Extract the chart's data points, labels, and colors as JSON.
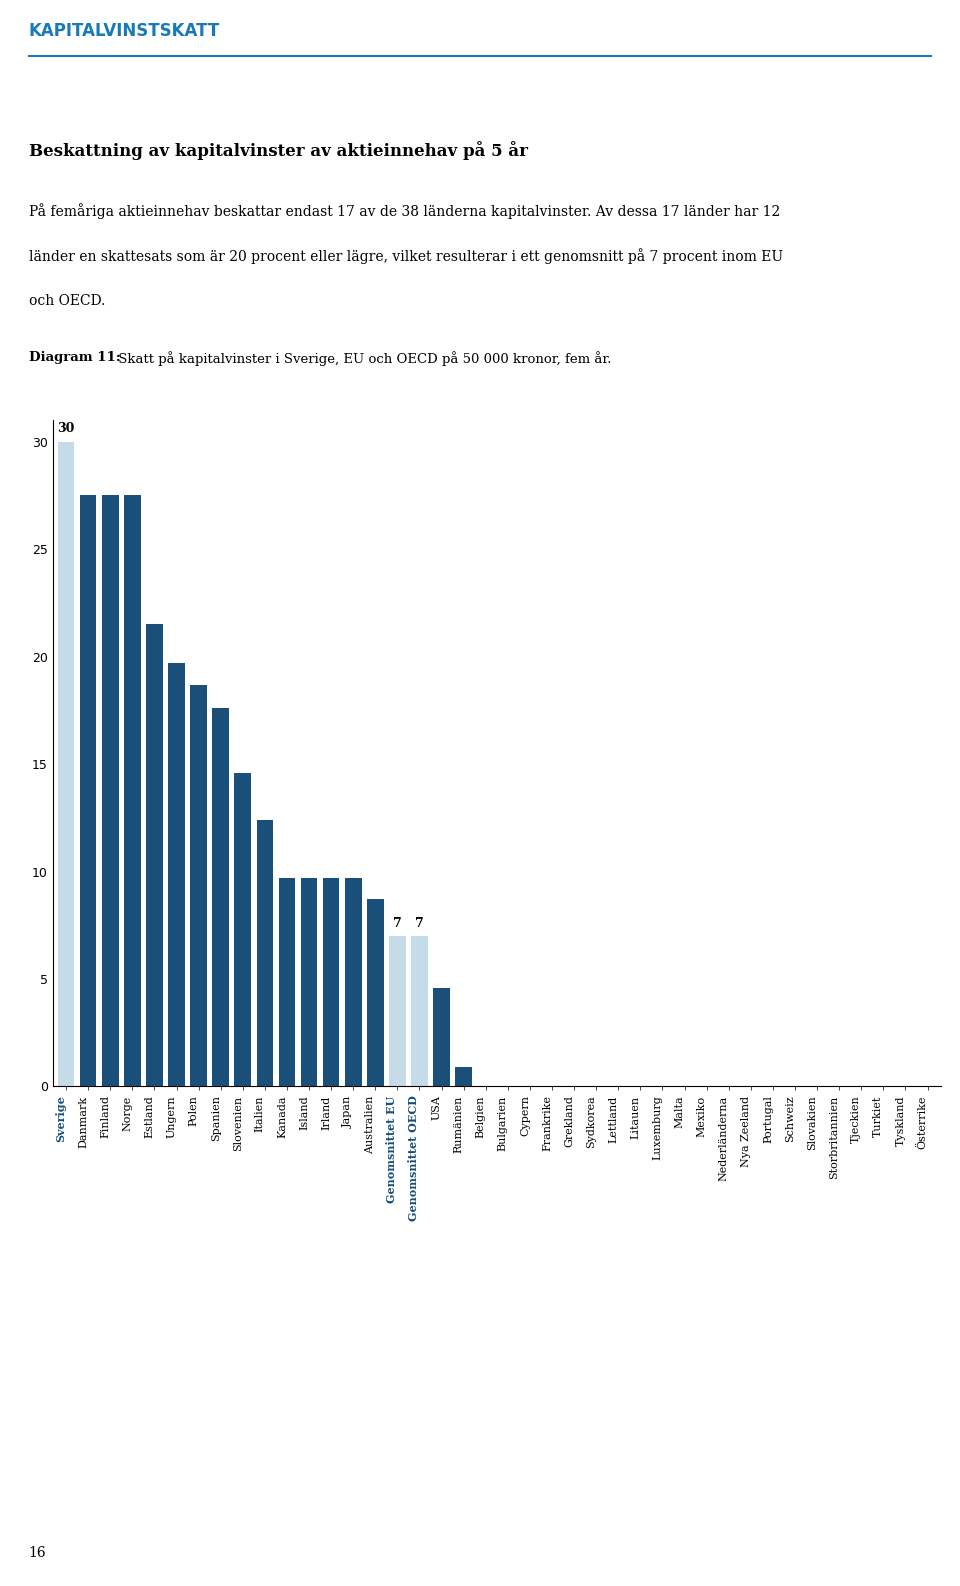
{
  "categories": [
    "Sverige",
    "Danmark",
    "Finland",
    "Norge",
    "Estland",
    "Ungern",
    "Polen",
    "Spanien",
    "Slovenien",
    "Italien",
    "Kanada",
    "Island",
    "Irland",
    "Japan",
    "Australien",
    "Genomsnittet EU",
    "Genomsnittet OECD",
    "USA",
    "Rumänien",
    "Belgien",
    "Bulgarien",
    "Cypern",
    "Frankrike",
    "Grekland",
    "Sydkorea",
    "Lettland",
    "Litauen",
    "Luxemburg",
    "Malta",
    "Mexiko",
    "Nederländerna",
    "Nya Zeeland",
    "Portugal",
    "Schweiz",
    "Slovakien",
    "Storbritannien",
    "Tjeckien",
    "Turkiet",
    "Tyskland",
    "Österrike"
  ],
  "values": [
    30,
    27.5,
    27.5,
    27.5,
    21.5,
    19.7,
    18.7,
    17.6,
    14.6,
    12.4,
    9.7,
    9.7,
    9.7,
    9.7,
    8.7,
    7,
    7,
    4.6,
    0.9,
    0,
    0,
    0,
    0,
    0,
    0,
    0,
    0,
    0,
    0,
    0,
    0,
    0,
    0,
    0,
    0,
    0,
    0,
    0,
    0,
    0
  ],
  "bar_colors": [
    "#c5dce8",
    "#1a4f7a",
    "#1a4f7a",
    "#1a4f7a",
    "#1a4f7a",
    "#1a4f7a",
    "#1a4f7a",
    "#1a4f7a",
    "#1a4f7a",
    "#1a4f7a",
    "#1a4f7a",
    "#1a4f7a",
    "#1a4f7a",
    "#1a4f7a",
    "#1a4f7a",
    "#c5dce8",
    "#c5dce8",
    "#1a4f7a",
    "#1a4f7a",
    "#1a4f7a",
    "#1a4f7a",
    "#1a4f7a",
    "#1a4f7a",
    "#1a4f7a",
    "#1a4f7a",
    "#1a4f7a",
    "#1a4f7a",
    "#1a4f7a",
    "#1a4f7a",
    "#1a4f7a",
    "#1a4f7a",
    "#1a4f7a",
    "#1a4f7a",
    "#1a4f7a",
    "#1a4f7a",
    "#1a4f7a",
    "#1a4f7a",
    "#1a4f7a",
    "#1a4f7a",
    "#1a4f7a"
  ],
  "ylim": [
    0,
    31
  ],
  "yticks": [
    0,
    5,
    10,
    15,
    20,
    25,
    30
  ],
  "header": "KAPITALVINSTSKATT",
  "title": "Beskattning av kapitalvinster av aktieinnehav på 5 år",
  "body_line1": "På femåriga aktieinnehav beskattar endast 17 av de 38 länderna kapitalvinster. Av dessa 17 länder har 12",
  "body_line2": "länder en skattesats som är 20 procent eller lägre, vilket resulterar i ett genomsnitt på 7 procent inom EU",
  "body_line3": "och OECD.",
  "diagram_label_bold": "Diagram 11:",
  "diagram_label_rest": " Skatt på kapitalvinster i Sverige, EU och OECD på 50 000 kronor, fem år.",
  "footer": "16",
  "bold_labels": [
    "Sverige",
    "Genomsnittet EU",
    "Genomsnittet OECD"
  ]
}
